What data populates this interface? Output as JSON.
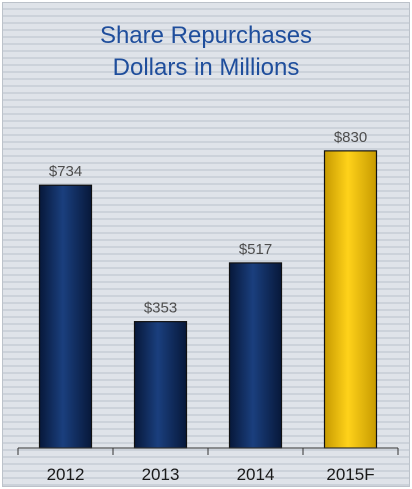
{
  "chart_data": {
    "type": "bar",
    "title": "Share Repurchases",
    "subtitle": "Dollars in Millions",
    "categories": [
      "2012",
      "2013",
      "2014",
      "2015F"
    ],
    "values": [
      734,
      353,
      517,
      830
    ],
    "data_labels": [
      "$734",
      "$353",
      "$517",
      "$830"
    ],
    "bar_colors": [
      "#0f2a5c",
      "#0f2a5c",
      "#0f2a5c",
      "#f2c200"
    ],
    "xlabel": "",
    "ylabel": "",
    "ylim": [
      0,
      1000
    ],
    "grid": false,
    "legend": "none"
  },
  "colors": {
    "title": "#1f4e9c",
    "navy": "#0f2a5c",
    "gold": "#f2c200",
    "axis": "#333333"
  }
}
